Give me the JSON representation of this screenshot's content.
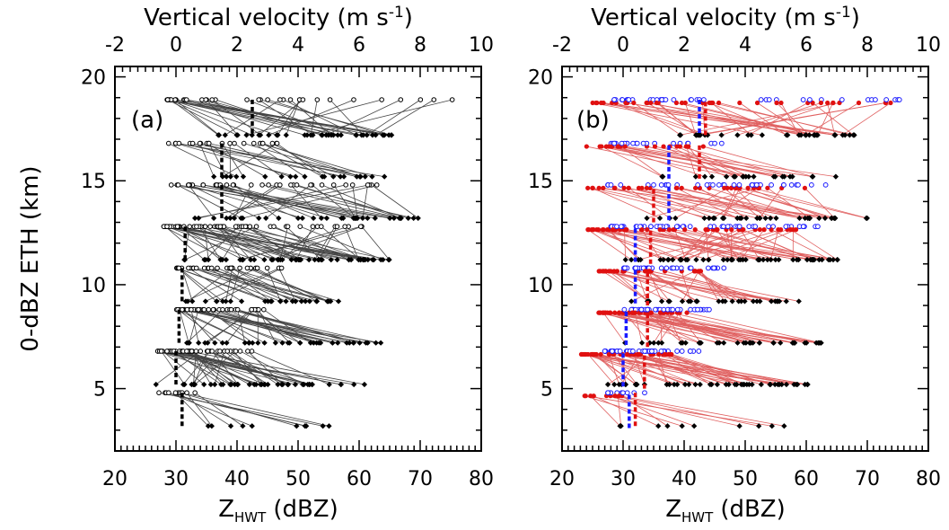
{
  "chart_data": [
    {
      "panel_label": "(a)",
      "type": "scatter",
      "xlabel": "Z",
      "xlabel_sub": "HWT",
      "xlabel_unit": "(dBZ)",
      "x2label_pre": "Vertical velocity (m s",
      "x2label_sup": "-1",
      "x2label_post": ")",
      "ylabel": "0-dBZ ETH (km)",
      "xlim": [
        20,
        80
      ],
      "x2lim": [
        -2,
        10
      ],
      "ylim": [
        2,
        20.5
      ],
      "xticks": [
        "20",
        "30",
        "40",
        "50",
        "60",
        "70",
        "80"
      ],
      "x2ticks": [
        "-2",
        "0",
        "2",
        "4",
        "6",
        "8",
        "10"
      ],
      "yticks": [
        "5",
        "10",
        "15",
        "20"
      ],
      "colors": {
        "reflectivity": "#000000",
        "velocity": "#000000",
        "link": "#555555"
      },
      "levels_km": [
        3.2,
        4.8,
        5.2,
        6.8,
        7.2,
        8.8,
        9.2,
        10.8,
        11.2,
        12.8,
        13.2,
        14.8,
        15.2,
        16.8,
        17.2,
        18.9
      ],
      "velocity_median": [
        {
          "y": 4.8,
          "v": 0.2
        },
        {
          "y": 6.8,
          "v": 0.0
        },
        {
          "y": 8.8,
          "v": 0.1
        },
        {
          "y": 10.8,
          "v": 0.2
        },
        {
          "y": 12.8,
          "v": 0.3
        },
        {
          "y": 14.8,
          "v": 1.5
        },
        {
          "y": 16.8,
          "v": 1.5
        },
        {
          "y": 18.9,
          "v": 2.5
        }
      ]
    },
    {
      "panel_label": "(b)",
      "type": "scatter",
      "xlabel": "Z",
      "xlabel_sub": "HWT",
      "xlabel_unit": "(dBZ)",
      "x2label_pre": "Vertical velocity (m s",
      "x2label_sup": "-1",
      "x2label_post": ")",
      "xlim": [
        20,
        80
      ],
      "x2lim": [
        -2,
        10
      ],
      "ylim": [
        2,
        20.5
      ],
      "xticks": [
        "20",
        "30",
        "40",
        "50",
        "60",
        "70",
        "80"
      ],
      "x2ticks": [
        "-2",
        "0",
        "2",
        "4",
        "6",
        "8",
        "10"
      ],
      "yticks": [
        "5",
        "10",
        "15",
        "20"
      ],
      "colors": {
        "reflectivity": "#000000",
        "velocity_blue": "#1a1aff",
        "velocity_red": "#e01010",
        "link": "#e06060"
      },
      "velocity_median_blue": [
        {
          "y": 4.7,
          "v": 0.2
        },
        {
          "y": 6.7,
          "v": 0.0
        },
        {
          "y": 8.7,
          "v": 0.1
        },
        {
          "y": 10.7,
          "v": 0.4
        },
        {
          "y": 12.7,
          "v": 0.4
        },
        {
          "y": 14.7,
          "v": 1.5
        },
        {
          "y": 16.7,
          "v": 1.5
        },
        {
          "y": 18.9,
          "v": 2.5
        }
      ],
      "velocity_median_red": [
        {
          "y": 4.8,
          "v": 0.4
        },
        {
          "y": 6.6,
          "v": 0.7
        },
        {
          "y": 8.6,
          "v": 0.8
        },
        {
          "y": 10.6,
          "v": 0.8
        },
        {
          "y": 12.6,
          "v": 0.9
        },
        {
          "y": 14.6,
          "v": 1.0
        },
        {
          "y": 16.7,
          "v": 2.5
        },
        {
          "y": 18.8,
          "v": 2.7
        }
      ]
    }
  ]
}
